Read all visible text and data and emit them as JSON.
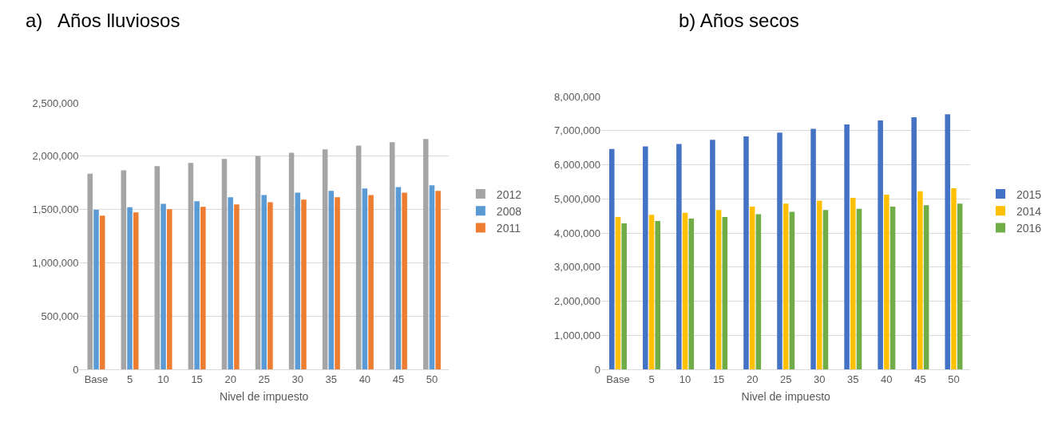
{
  "chart_data": [
    {
      "type": "bar",
      "title": "a)   Años lluviosos",
      "xlabel": "Nivel de impuesto",
      "categories": [
        "Base",
        "5",
        "10",
        "15",
        "20",
        "25",
        "30",
        "35",
        "40",
        "45",
        "50"
      ],
      "series": [
        {
          "name": "2012",
          "color": "#a5a5a5",
          "values": [
            1836000,
            1867000,
            1906000,
            1936000,
            1975000,
            2003000,
            2033000,
            2064000,
            2100000,
            2131000,
            2161000
          ]
        },
        {
          "name": "2008",
          "color": "#5b9bd5",
          "values": [
            1497000,
            1522000,
            1553000,
            1578000,
            1614000,
            1636000,
            1658000,
            1675000,
            1697000,
            1711000,
            1728000
          ]
        },
        {
          "name": "2011",
          "color": "#ed7d31",
          "values": [
            1442000,
            1472000,
            1503000,
            1525000,
            1547000,
            1569000,
            1592000,
            1614000,
            1636000,
            1658000,
            1675000
          ]
        }
      ],
      "ylim": [
        0,
        2500000
      ],
      "yticks": [
        0,
        {
          "value": 500000,
          "label": "500,000"
        },
        {
          "value": 1000000,
          "label": "1,000,000"
        },
        {
          "value": 1500000,
          "label": "1,500,000"
        },
        {
          "value": 2000000,
          "label": "2,000,000"
        },
        {
          "value": 2500000,
          "label": "2,500,000"
        }
      ],
      "grid": "y",
      "legend": "right"
    },
    {
      "type": "bar",
      "title": "b) Años secos",
      "xlabel": "Nivel de impuesto",
      "categories": [
        "Base",
        "5",
        "10",
        "15",
        "20",
        "25",
        "30",
        "35",
        "40",
        "45",
        "50"
      ],
      "series": [
        {
          "name": "2015",
          "color": "#4472c4",
          "values": [
            6460000,
            6540000,
            6610000,
            6730000,
            6830000,
            6940000,
            7050000,
            7180000,
            7300000,
            7390000,
            7480000
          ]
        },
        {
          "name": "2014",
          "color": "#ffc000",
          "values": [
            4470000,
            4530000,
            4590000,
            4670000,
            4770000,
            4860000,
            4950000,
            5030000,
            5120000,
            5220000,
            5310000
          ]
        },
        {
          "name": "2016",
          "color": "#70ad47",
          "values": [
            4280000,
            4350000,
            4420000,
            4470000,
            4550000,
            4620000,
            4670000,
            4710000,
            4770000,
            4810000,
            4860000
          ]
        }
      ],
      "ylim": [
        0,
        8000000
      ],
      "yticks": [
        0,
        {
          "value": 1000000,
          "label": "1,000,000"
        },
        {
          "value": 2000000,
          "label": "2,000,000"
        },
        {
          "value": 3000000,
          "label": "3,000,000"
        },
        {
          "value": 4000000,
          "label": "4,000,000"
        },
        {
          "value": 5000000,
          "label": "5,000,000"
        },
        {
          "value": 6000000,
          "label": "6,000,000"
        },
        {
          "value": 7000000,
          "label": "7,000,000"
        },
        {
          "value": 8000000,
          "label": "8,000,000"
        }
      ],
      "grid": "y",
      "legend": "right"
    }
  ]
}
